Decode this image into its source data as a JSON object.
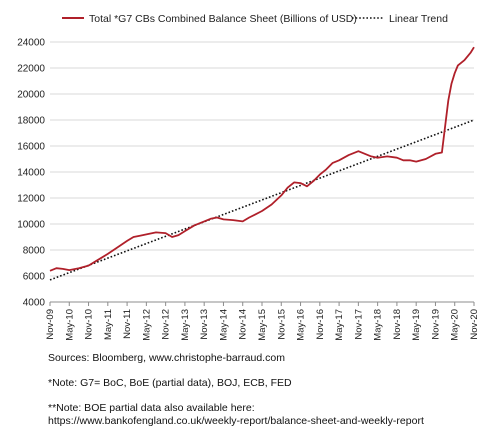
{
  "chart_data": {
    "type": "line",
    "legend": {
      "series_label": "Total *G7 CBs Combined Balance Sheet (Billions of USD)",
      "trend_label": "Linear Trend",
      "placement": "top"
    },
    "colors": {
      "series": "#b0202a",
      "trend": "#111111"
    },
    "ylim": [
      4000,
      24000
    ],
    "yticks": [
      "4000",
      "6000",
      "8000",
      "10000",
      "12000",
      "14000",
      "16000",
      "18000",
      "20000",
      "22000",
      "24000"
    ],
    "xticks": [
      "Nov-09",
      "May-10",
      "Nov-10",
      "May-11",
      "Nov-11",
      "May-12",
      "Nov-12",
      "May-13",
      "Nov-13",
      "May-14",
      "Nov-14",
      "May-15",
      "Nov-15",
      "May-16",
      "Nov-16",
      "May-17",
      "Nov-17",
      "May-18",
      "Nov-18",
      "May-19",
      "Nov-19",
      "May-20",
      "Nov-20"
    ],
    "grid": true,
    "series": [
      {
        "name": "Total *G7 CBs Combined Balance Sheet (Billions of USD)",
        "points": [
          [
            "Nov-09",
            6400
          ],
          [
            "Jan-10",
            6600
          ],
          [
            "Mar-10",
            6550
          ],
          [
            "May-10",
            6450
          ],
          [
            "Aug-10",
            6600
          ],
          [
            "Nov-10",
            6800
          ],
          [
            "Jan-11",
            7100
          ],
          [
            "Mar-11",
            7400
          ],
          [
            "May-11",
            7700
          ],
          [
            "Aug-11",
            8200
          ],
          [
            "Nov-11",
            8700
          ],
          [
            "Jan-12",
            9000
          ],
          [
            "Mar-12",
            9100
          ],
          [
            "May-12",
            9200
          ],
          [
            "Aug-12",
            9350
          ],
          [
            "Nov-12",
            9300
          ],
          [
            "Jan-13",
            9000
          ],
          [
            "Mar-13",
            9150
          ],
          [
            "May-13",
            9450
          ],
          [
            "Aug-13",
            9900
          ],
          [
            "Nov-13",
            10200
          ],
          [
            "Jan-14",
            10400
          ],
          [
            "Mar-14",
            10500
          ],
          [
            "May-14",
            10350
          ],
          [
            "Aug-14",
            10300
          ],
          [
            "Nov-14",
            10200
          ],
          [
            "Jan-15",
            10500
          ],
          [
            "Mar-15",
            10750
          ],
          [
            "May-15",
            11000
          ],
          [
            "Aug-15",
            11500
          ],
          [
            "Nov-15",
            12200
          ],
          [
            "Jan-16",
            12800
          ],
          [
            "Mar-16",
            13200
          ],
          [
            "May-16",
            13150
          ],
          [
            "Jul-16",
            12900
          ],
          [
            "Sep-16",
            13300
          ],
          [
            "Nov-16",
            13800
          ],
          [
            "Jan-17",
            14200
          ],
          [
            "Mar-17",
            14700
          ],
          [
            "May-17",
            14900
          ],
          [
            "Aug-17",
            15300
          ],
          [
            "Nov-17",
            15600
          ],
          [
            "Jan-18",
            15400
          ],
          [
            "Mar-18",
            15200
          ],
          [
            "May-18",
            15100
          ],
          [
            "Aug-18",
            15200
          ],
          [
            "Nov-18",
            15100
          ],
          [
            "Jan-19",
            14900
          ],
          [
            "Mar-19",
            14900
          ],
          [
            "May-19",
            14800
          ],
          [
            "Aug-19",
            15000
          ],
          [
            "Nov-19",
            15400
          ],
          [
            "Jan-20",
            15500
          ],
          [
            "Feb-20",
            17500
          ],
          [
            "Mar-20",
            19500
          ],
          [
            "Apr-20",
            20800
          ],
          [
            "May-20",
            21600
          ],
          [
            "Jun-20",
            22200
          ],
          [
            "Aug-20",
            22600
          ],
          [
            "Oct-20",
            23200
          ],
          [
            "Nov-20",
            23600
          ]
        ]
      },
      {
        "name": "Linear Trend",
        "points": [
          [
            "Nov-09",
            5700
          ],
          [
            "Nov-20",
            18000
          ]
        ]
      }
    ]
  },
  "notes": {
    "sources": "Sources: Bloomberg, www.christophe-barraud.com",
    "g7_note": "*Note: G7= BoC, BoE (partial data), BOJ, ECB, FED",
    "boe_note": "**Note: BOE partial data also available here:",
    "boe_url": "https://www.bankofengland.co.uk/weekly-report/balance-sheet-and-weekly-report"
  }
}
